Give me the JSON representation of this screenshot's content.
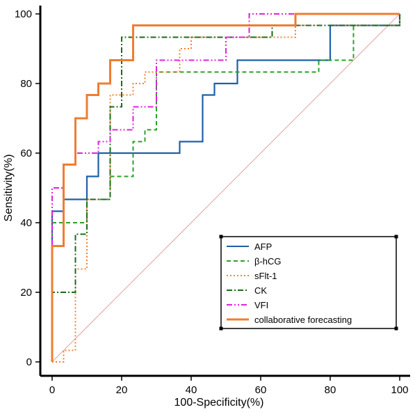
{
  "chart_data": {
    "type": "line",
    "title": "",
    "xlabel": "100-Specificity(%)",
    "ylabel": "Sensitivity(%)",
    "xlim": [
      0,
      100
    ],
    "ylim": [
      0,
      100
    ],
    "x_ticks": [
      "0",
      "20",
      "40",
      "60",
      "80",
      "100"
    ],
    "y_ticks": [
      "0",
      "20",
      "40",
      "60",
      "80",
      "100"
    ],
    "grid": false,
    "legend_position": "bottom-right",
    "reference_line": {
      "from": [
        0,
        0
      ],
      "to": [
        100,
        100
      ],
      "color": "#e8a0a0"
    },
    "series": [
      {
        "name": "AFP",
        "color": "#1f5fa8",
        "dash": "solid",
        "points": [
          [
            0,
            0
          ],
          [
            0,
            43.3
          ],
          [
            3.3,
            43.3
          ],
          [
            3.3,
            46.7
          ],
          [
            10,
            46.7
          ],
          [
            10,
            53.3
          ],
          [
            13.3,
            53.3
          ],
          [
            13.3,
            60
          ],
          [
            36.7,
            60
          ],
          [
            36.7,
            63.3
          ],
          [
            43.3,
            63.3
          ],
          [
            43.3,
            76.7
          ],
          [
            46.7,
            76.7
          ],
          [
            46.7,
            80
          ],
          [
            53.3,
            80
          ],
          [
            53.3,
            86.7
          ],
          [
            80,
            86.7
          ],
          [
            80,
            96.7
          ],
          [
            100,
            96.7
          ],
          [
            100,
            100
          ]
        ]
      },
      {
        "name": "β-hCG",
        "color": "#2aa02a",
        "dash": "dashed",
        "points": [
          [
            0,
            0
          ],
          [
            0,
            40
          ],
          [
            6.7,
            40
          ],
          [
            10,
            40
          ],
          [
            10,
            46.7
          ],
          [
            16.7,
            46.7
          ],
          [
            16.7,
            53.3
          ],
          [
            23.3,
            53.3
          ],
          [
            23.3,
            63.3
          ],
          [
            26.7,
            63.3
          ],
          [
            26.7,
            66.7
          ],
          [
            30,
            66.7
          ],
          [
            30,
            83.3
          ],
          [
            76.7,
            83.3
          ],
          [
            76.7,
            86.7
          ],
          [
            86.7,
            86.7
          ],
          [
            86.7,
            96.7
          ],
          [
            100,
            96.7
          ],
          [
            100,
            100
          ]
        ]
      },
      {
        "name": "sFlt-1",
        "color": "#f08030",
        "dash": "dotted",
        "points": [
          [
            0,
            0
          ],
          [
            3.3,
            0
          ],
          [
            3.3,
            3.3
          ],
          [
            6.7,
            3.3
          ],
          [
            6.7,
            26.7
          ],
          [
            10,
            26.7
          ],
          [
            10,
            46.7
          ],
          [
            16.7,
            46.7
          ],
          [
            16.7,
            76.7
          ],
          [
            23.3,
            76.7
          ],
          [
            23.3,
            80
          ],
          [
            26.7,
            80
          ],
          [
            26.7,
            83.3
          ],
          [
            36.7,
            83.3
          ],
          [
            36.7,
            90
          ],
          [
            40,
            90
          ],
          [
            40,
            93.3
          ],
          [
            70,
            93.3
          ],
          [
            70,
            96.7
          ],
          [
            100,
            96.7
          ],
          [
            100,
            100
          ]
        ]
      },
      {
        "name": "CK",
        "color": "#1a6b1a",
        "dash": "dashdot",
        "points": [
          [
            0,
            0
          ],
          [
            0,
            20
          ],
          [
            6.7,
            20
          ],
          [
            6.7,
            36.7
          ],
          [
            10,
            36.7
          ],
          [
            10,
            46.7
          ],
          [
            16.7,
            46.7
          ],
          [
            16.7,
            73.3
          ],
          [
            20,
            73.3
          ],
          [
            20,
            93.3
          ],
          [
            63.3,
            93.3
          ],
          [
            63.3,
            96.7
          ],
          [
            100,
            96.7
          ],
          [
            100,
            100
          ]
        ]
      },
      {
        "name": "VFI",
        "color": "#e020e0",
        "dash": "dashdotdot",
        "points": [
          [
            0,
            0
          ],
          [
            0,
            50
          ],
          [
            3.3,
            50
          ],
          [
            3.3,
            56.7
          ],
          [
            6.7,
            56.7
          ],
          [
            6.7,
            60
          ],
          [
            13.3,
            60
          ],
          [
            13.3,
            63.3
          ],
          [
            16.7,
            63.3
          ],
          [
            16.7,
            66.7
          ],
          [
            23.3,
            66.7
          ],
          [
            23.3,
            73.3
          ],
          [
            30,
            73.3
          ],
          [
            30,
            86.7
          ],
          [
            50,
            86.7
          ],
          [
            50,
            93.3
          ],
          [
            56.7,
            93.3
          ],
          [
            56.7,
            100
          ],
          [
            100,
            100
          ]
        ]
      },
      {
        "name": "collaborative forecasting",
        "color": "#ee7d31",
        "dash": "solid",
        "points": [
          [
            0,
            0
          ],
          [
            0,
            33.3
          ],
          [
            3.3,
            33.3
          ],
          [
            3.3,
            56.7
          ],
          [
            6.7,
            56.7
          ],
          [
            6.7,
            70
          ],
          [
            10,
            70
          ],
          [
            10,
            76.7
          ],
          [
            13.3,
            76.7
          ],
          [
            13.3,
            80
          ],
          [
            16.7,
            80
          ],
          [
            16.7,
            86.7
          ],
          [
            23.3,
            86.7
          ],
          [
            23.3,
            96.7
          ],
          [
            70,
            96.7
          ],
          [
            70,
            100
          ],
          [
            100,
            100
          ]
        ]
      }
    ]
  }
}
